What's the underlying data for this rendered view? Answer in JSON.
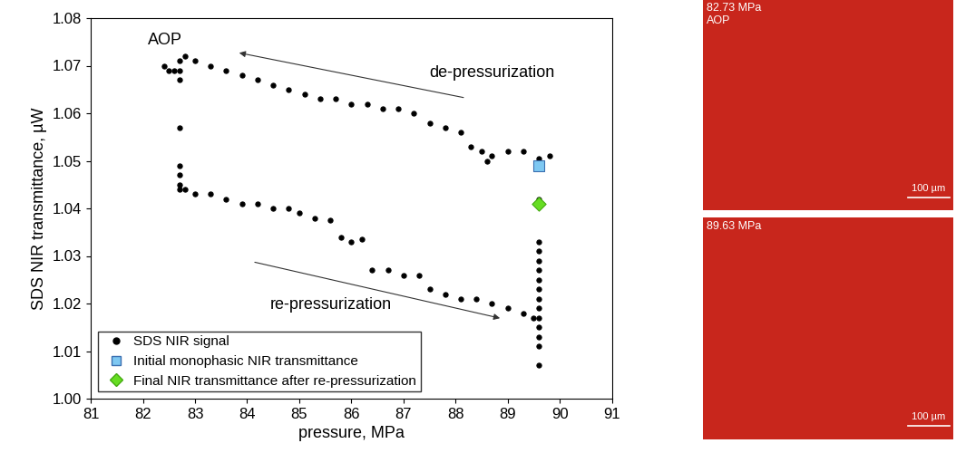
{
  "chart_data": {
    "type": "scatter",
    "x_label": "pressure, MPa",
    "y_label": "SDS NIR transmittance, µW",
    "annotations": [
      "AOP",
      "de-pressurization",
      "re-pressurization"
    ],
    "xlim": [
      81,
      91
    ],
    "xticks": [
      81,
      82,
      83,
      84,
      85,
      86,
      87,
      88,
      89,
      90,
      91
    ],
    "ylim": [
      1.0,
      1.08
    ],
    "yticks": [
      {
        "value": 1.0,
        "label": "1.00"
      },
      {
        "value": 1.01,
        "label": "1.01"
      },
      {
        "value": 1.02,
        "label": "1.02"
      },
      {
        "value": 1.03,
        "label": "1.03"
      },
      {
        "value": 1.04,
        "label": "1.04"
      },
      {
        "value": 1.05,
        "label": "1.05"
      },
      {
        "value": 1.06,
        "label": "1.06"
      },
      {
        "value": 1.07,
        "label": "1.07"
      },
      {
        "value": 1.08,
        "label": "1.08"
      }
    ],
    "legend": "lower left",
    "grid": false,
    "series": [
      {
        "name": "SDS NIR signal",
        "color": "#000000",
        "marker": "circle",
        "x": [
          89.8,
          89.6,
          89.3,
          89.0,
          88.7,
          88.6,
          88.5,
          88.3,
          88.1,
          87.8,
          87.5,
          87.2,
          86.9,
          86.6,
          86.3,
          86.0,
          85.7,
          85.4,
          85.1,
          84.8,
          84.5,
          84.2,
          83.9,
          83.6,
          83.3,
          83.0,
          82.8,
          82.7,
          82.7,
          82.7,
          82.6,
          82.5,
          82.4,
          82.7,
          82.7,
          82.7,
          82.7,
          82.7,
          82.8,
          83.0,
          83.3,
          83.6,
          83.9,
          84.2,
          84.5,
          84.8,
          85.0,
          85.3,
          85.6,
          85.8,
          86.0,
          86.2,
          86.4,
          86.7,
          87.0,
          87.3,
          87.5,
          87.8,
          88.1,
          88.4,
          88.7,
          89.0,
          89.3,
          89.5,
          89.6,
          89.6,
          89.6,
          89.6,
          89.6,
          89.6,
          89.6,
          89.6,
          89.6,
          89.6,
          89.6,
          89.6,
          89.6,
          89.6
        ],
        "values": [
          1.051,
          1.0505,
          1.052,
          1.052,
          1.051,
          1.05,
          1.052,
          1.053,
          1.056,
          1.057,
          1.058,
          1.06,
          1.061,
          1.061,
          1.062,
          1.062,
          1.063,
          1.063,
          1.064,
          1.065,
          1.066,
          1.067,
          1.068,
          1.069,
          1.07,
          1.071,
          1.072,
          1.071,
          1.069,
          1.067,
          1.069,
          1.069,
          1.07,
          1.057,
          1.049,
          1.047,
          1.045,
          1.044,
          1.044,
          1.043,
          1.043,
          1.042,
          1.041,
          1.041,
          1.04,
          1.04,
          1.039,
          1.038,
          1.0375,
          1.034,
          1.033,
          1.0335,
          1.027,
          1.027,
          1.026,
          1.026,
          1.023,
          1.022,
          1.021,
          1.021,
          1.02,
          1.019,
          1.018,
          1.017,
          1.007,
          1.011,
          1.013,
          1.015,
          1.017,
          1.019,
          1.021,
          1.023,
          1.025,
          1.027,
          1.029,
          1.031,
          1.033,
          1.042
        ]
      },
      {
        "name": "Initial monophasic NIR transmittance",
        "color": "#7ec8f2",
        "marker": "square",
        "x": [
          89.6
        ],
        "values": [
          1.049
        ]
      },
      {
        "name": "Final NIR transmittance after re-pressurization",
        "color": "#66dd22",
        "marker": "diamond",
        "x": [
          89.6
        ],
        "values": [
          1.041
        ]
      }
    ]
  },
  "images": [
    {
      "label": [
        "82.73 MPa",
        "AOP"
      ],
      "scale_bar": "100 µm",
      "color": "#c8261c"
    },
    {
      "label": [
        "89.63 MPa"
      ],
      "scale_bar": "100 µm",
      "color": "#c8261c"
    }
  ]
}
